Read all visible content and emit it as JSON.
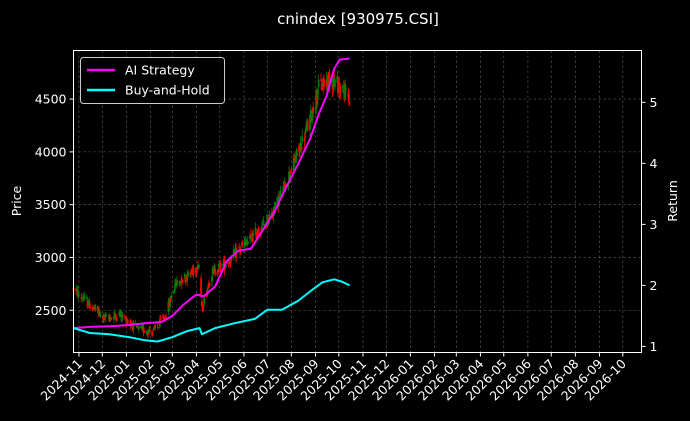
{
  "chart_data": {
    "type": "line",
    "title": "cnindex [930975.CSI]",
    "ylabel_left": "Price",
    "ylabel_right": "Return",
    "y_left_ticks": [
      2500,
      3000,
      3500,
      4000,
      4500
    ],
    "y_left_range": [
      2100,
      4960
    ],
    "y_right_ticks": [
      1,
      2,
      3,
      4,
      5
    ],
    "y_right_range": [
      0.9,
      5.85
    ],
    "x_range": [
      "2024-10-25",
      "2026-10-25"
    ],
    "x_ticks": [
      "2024-11",
      "2024-12",
      "2025-01",
      "2025-02",
      "2025-03",
      "2025-04",
      "2025-05",
      "2025-06",
      "2025-07",
      "2025-08",
      "2025-09",
      "2025-10",
      "2025-11",
      "2025-12",
      "2026-01",
      "2026-02",
      "2026-03",
      "2026-04",
      "2026-05",
      "2026-06",
      "2026-07",
      "2026-08",
      "2026-09",
      "2026-10"
    ],
    "grid": true,
    "legend_position": "top-left",
    "candles_up_color": "#008000",
    "candles_down_color": "#ff0000",
    "price_anchors": [
      [
        "2024-10-25",
        2700
      ],
      [
        "2024-11-15",
        2550
      ],
      [
        "2024-12-05",
        2420
      ],
      [
        "2024-12-25",
        2460
      ],
      [
        "2025-01-15",
        2320
      ],
      [
        "2025-02-05",
        2300
      ],
      [
        "2025-02-20",
        2440
      ],
      [
        "2025-03-05",
        2750
      ],
      [
        "2025-03-25",
        2850
      ],
      [
        "2025-04-05",
        2950
      ],
      [
        "2025-04-08",
        2500
      ],
      [
        "2025-04-20",
        2850
      ],
      [
        "2025-05-10",
        2950
      ],
      [
        "2025-05-30",
        3100
      ],
      [
        "2025-06-20",
        3250
      ],
      [
        "2025-07-10",
        3450
      ],
      [
        "2025-07-25",
        3700
      ],
      [
        "2025-08-10",
        4000
      ],
      [
        "2025-08-25",
        4300
      ],
      [
        "2025-09-05",
        4600
      ],
      [
        "2025-09-20",
        4700
      ],
      [
        "2025-10-05",
        4600
      ],
      [
        "2025-10-15",
        4500
      ]
    ],
    "series": [
      {
        "name": "AI Strategy",
        "color": "#ff00ff",
        "points": [
          [
            "2024-10-25",
            1.3
          ],
          [
            "2024-11-15",
            1.32
          ],
          [
            "2024-12-10",
            1.33
          ],
          [
            "2025-01-05",
            1.35
          ],
          [
            "2025-01-25",
            1.38
          ],
          [
            "2025-02-15",
            1.4
          ],
          [
            "2025-03-01",
            1.5
          ],
          [
            "2025-03-15",
            1.68
          ],
          [
            "2025-04-01",
            1.85
          ],
          [
            "2025-04-10",
            1.82
          ],
          [
            "2025-04-25",
            1.98
          ],
          [
            "2025-05-10",
            2.4
          ],
          [
            "2025-05-25",
            2.57
          ],
          [
            "2025-06-10",
            2.6
          ],
          [
            "2025-06-25",
            2.9
          ],
          [
            "2025-07-10",
            3.2
          ],
          [
            "2025-07-25",
            3.6
          ],
          [
            "2025-08-10",
            4.0
          ],
          [
            "2025-08-25",
            4.4
          ],
          [
            "2025-09-05",
            4.8
          ],
          [
            "2025-09-15",
            5.1
          ],
          [
            "2025-09-25",
            5.55
          ],
          [
            "2025-10-02",
            5.7
          ],
          [
            "2025-10-15",
            5.72
          ]
        ]
      },
      {
        "name": "Buy-and-Hold",
        "color": "#00ffff",
        "points": [
          [
            "2024-10-25",
            1.3
          ],
          [
            "2024-11-15",
            1.22
          ],
          [
            "2024-12-10",
            1.2
          ],
          [
            "2025-01-05",
            1.15
          ],
          [
            "2025-01-25",
            1.1
          ],
          [
            "2025-02-10",
            1.08
          ],
          [
            "2025-03-01",
            1.15
          ],
          [
            "2025-03-20",
            1.25
          ],
          [
            "2025-04-05",
            1.3
          ],
          [
            "2025-04-08",
            1.2
          ],
          [
            "2025-04-25",
            1.3
          ],
          [
            "2025-05-20",
            1.38
          ],
          [
            "2025-06-15",
            1.45
          ],
          [
            "2025-07-01",
            1.6
          ],
          [
            "2025-07-20",
            1.6
          ],
          [
            "2025-08-10",
            1.75
          ],
          [
            "2025-08-25",
            1.9
          ],
          [
            "2025-09-10",
            2.05
          ],
          [
            "2025-09-25",
            2.1
          ],
          [
            "2025-10-05",
            2.06
          ],
          [
            "2025-10-15",
            2.0
          ]
        ]
      }
    ]
  }
}
